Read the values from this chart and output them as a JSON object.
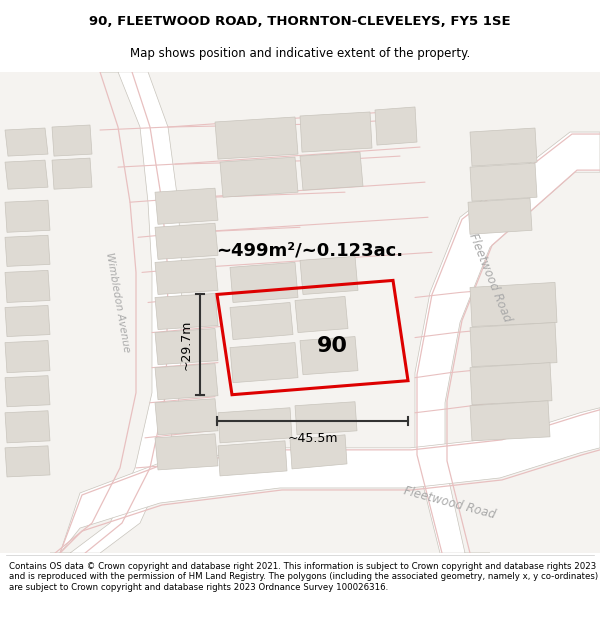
{
  "title_line1": "90, FLEETWOOD ROAD, THORNTON-CLEVELEYS, FY5 1SE",
  "title_line2": "Map shows position and indicative extent of the property.",
  "footer_text": "Contains OS data © Crown copyright and database right 2021. This information is subject to Crown copyright and database rights 2023 and is reproduced with the permission of HM Land Registry. The polygons (including the associated geometry, namely x, y co-ordinates) are subject to Crown copyright and database rights 2023 Ordnance Survey 100026316.",
  "property_label": "90",
  "area_label": "~499m²/~0.123ac.",
  "dim_h": "~29.7m",
  "dim_w": "~45.5m",
  "road_label_1": "Fleetwood Road",
  "road_label_2": "Fleetwood Road",
  "side_label": "Wimbledon Avenue",
  "bg_color": "#f5f3f0",
  "block_color": "#dedad3",
  "block_edge": "#c8c4bc",
  "road_surface": "#ffffff",
  "road_edge_color": "#e8c0c0",
  "road_gray_edge": "#c8c4bc",
  "red_color": "#dd0000",
  "dim_color": "#333333",
  "road_label_color": "#aaaaaa"
}
